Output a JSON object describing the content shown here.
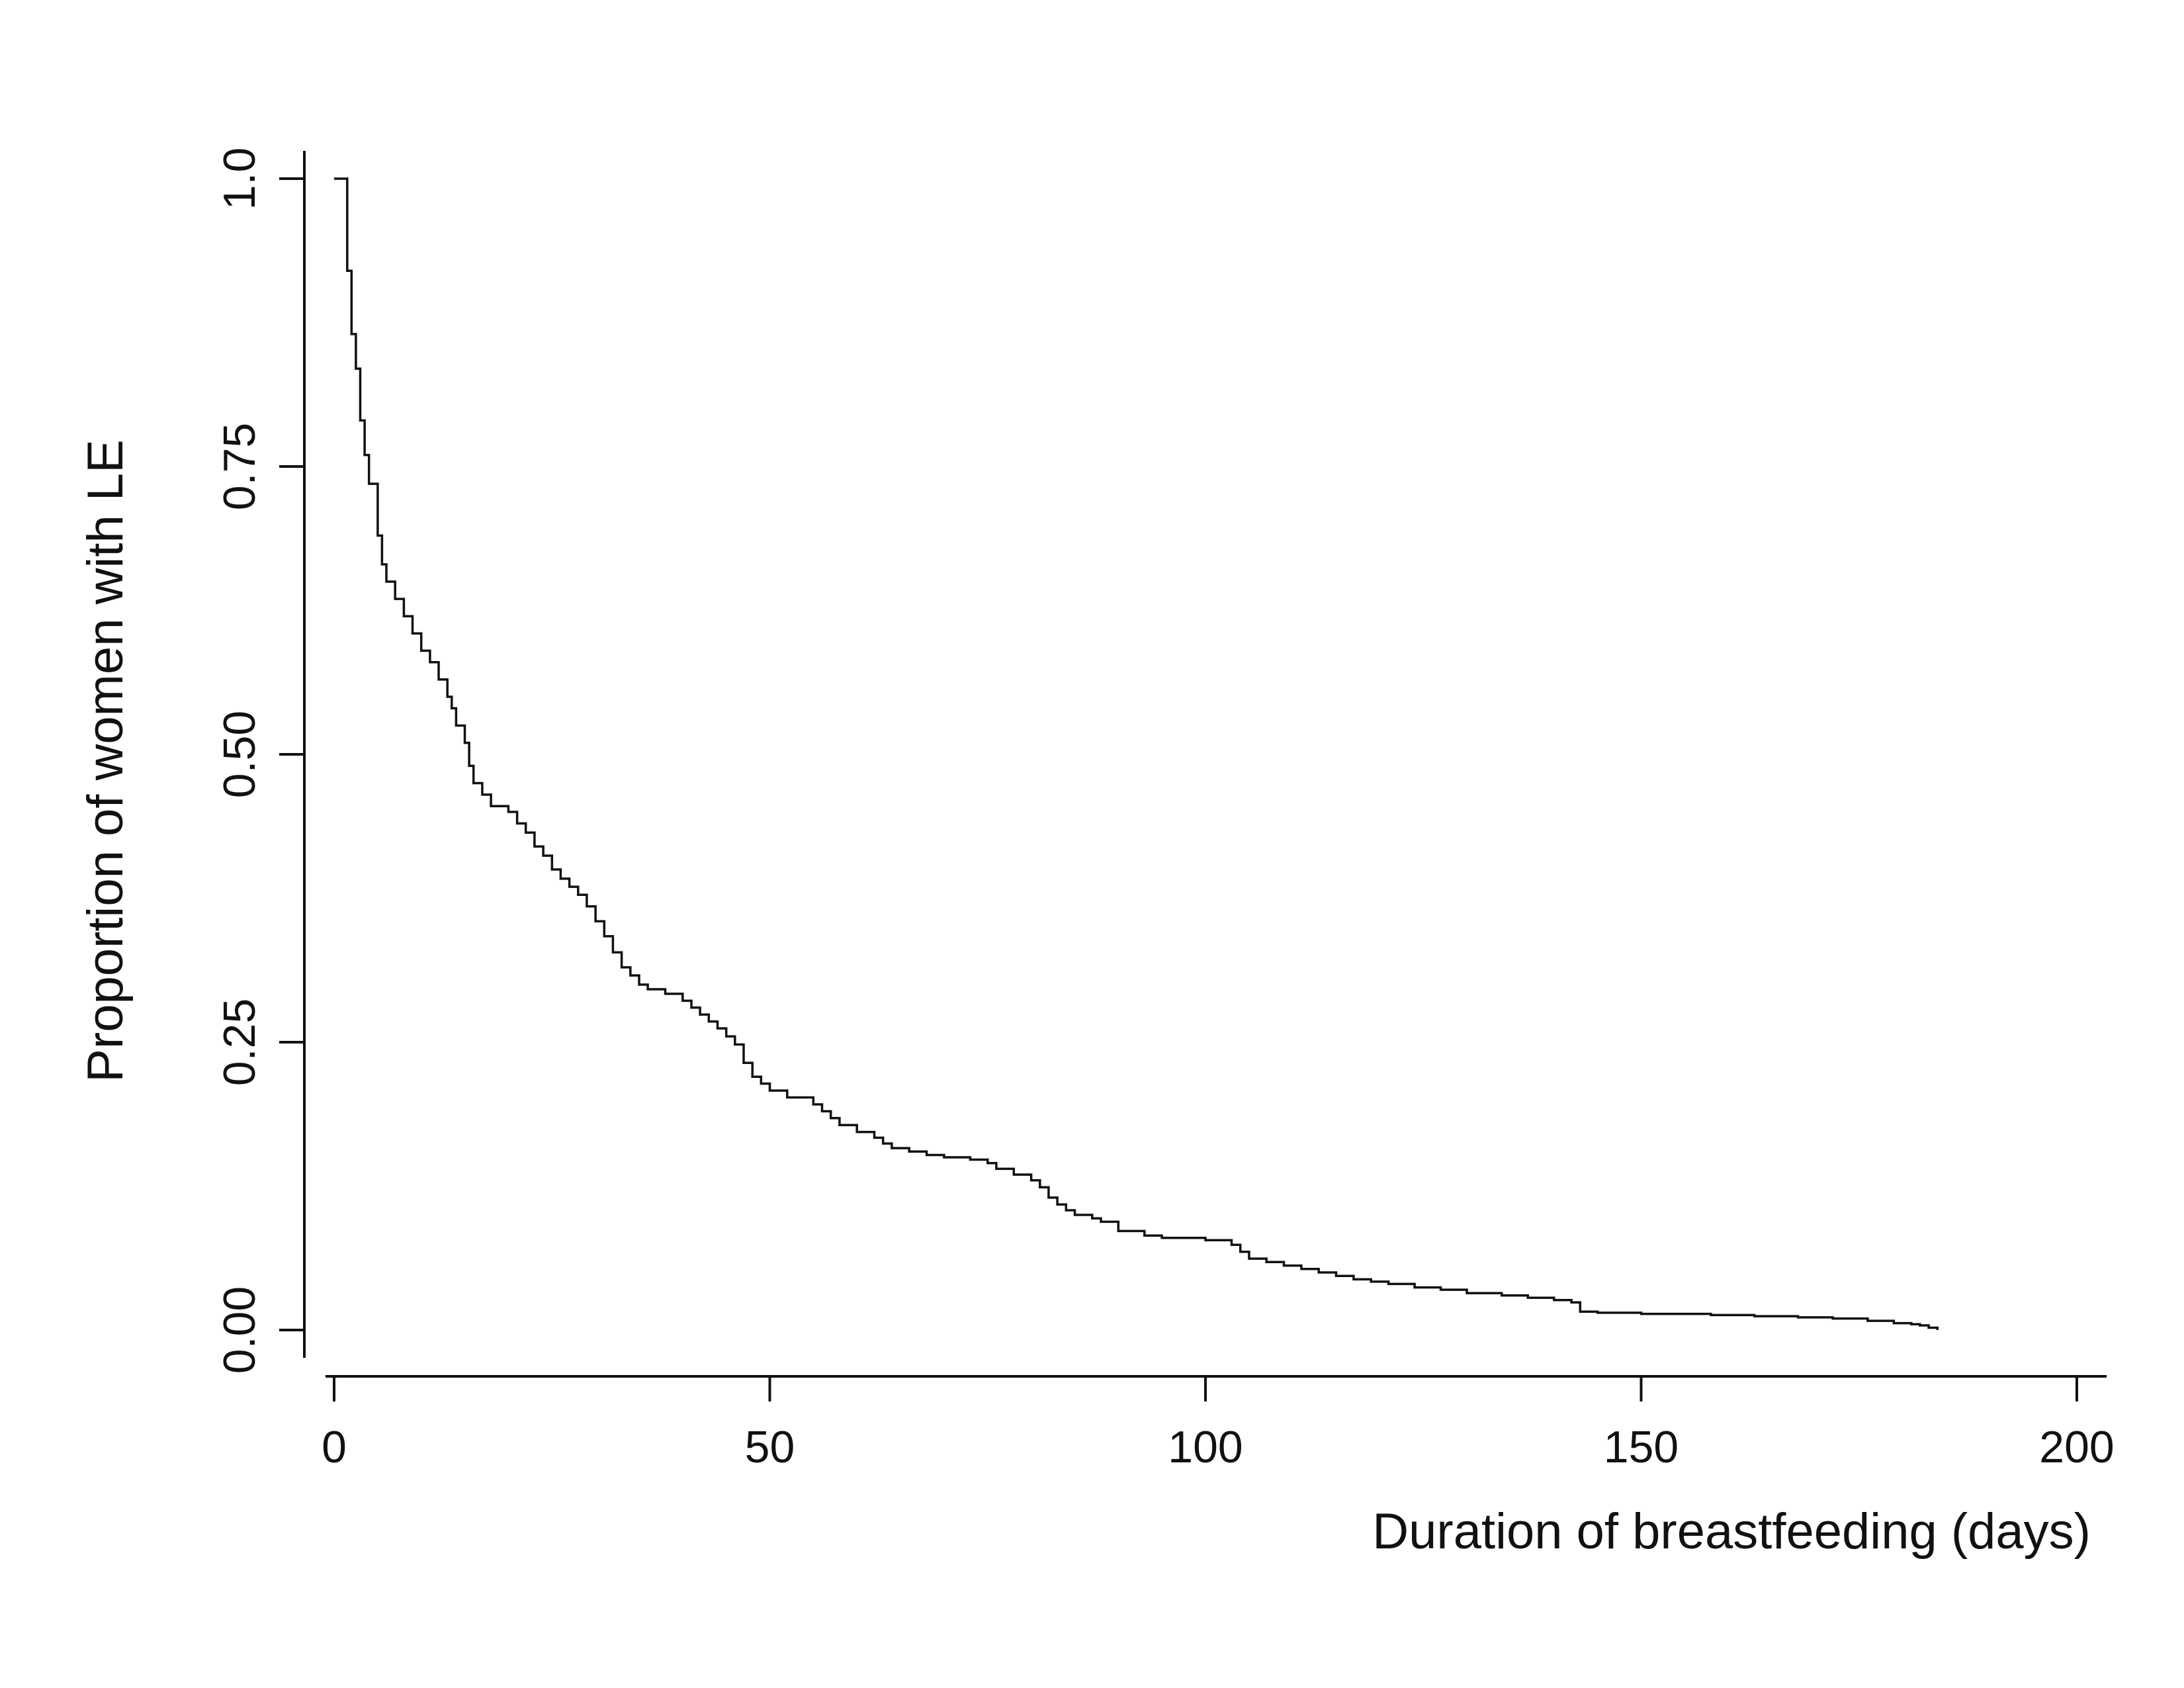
{
  "chart_data": {
    "type": "line",
    "subtype": "kaplan-meier-step-survival-curve",
    "title": "",
    "xlabel": "Duration of breastfeeding (days)",
    "ylabel": "Proportion of women with LE",
    "xlim": [
      0,
      200
    ],
    "ylim": [
      0,
      1
    ],
    "grid": "off",
    "legend": "none",
    "line_color": "#111111",
    "background": "#ffffff",
    "x_ticks": [
      {
        "value": 0,
        "label": "0"
      },
      {
        "value": 50,
        "label": "50"
      },
      {
        "value": 100,
        "label": "100"
      },
      {
        "value": 150,
        "label": "150"
      },
      {
        "value": 200,
        "label": "200"
      }
    ],
    "y_ticks": [
      {
        "value": 0,
        "label": "0.00"
      },
      {
        "value": 0.25,
        "label": "0.25"
      },
      {
        "value": 0.5,
        "label": "0.50"
      },
      {
        "value": 0.75,
        "label": "0.75"
      },
      {
        "value": 1,
        "label": "1.0"
      }
    ],
    "steps": [
      [
        0,
        1.0
      ],
      [
        1.5,
        0.92
      ],
      [
        2,
        0.865
      ],
      [
        2.5,
        0.835
      ],
      [
        3,
        0.79
      ],
      [
        3.5,
        0.76
      ],
      [
        4,
        0.735
      ],
      [
        5,
        0.69
      ],
      [
        5.5,
        0.665
      ],
      [
        6,
        0.65
      ],
      [
        7,
        0.635
      ],
      [
        8,
        0.62
      ],
      [
        9,
        0.605
      ],
      [
        10,
        0.59
      ],
      [
        11,
        0.58
      ],
      [
        12,
        0.565
      ],
      [
        13,
        0.55
      ],
      [
        13.5,
        0.54
      ],
      [
        14,
        0.525
      ],
      [
        15,
        0.51
      ],
      [
        15.5,
        0.49
      ],
      [
        16,
        0.475
      ],
      [
        17,
        0.465
      ],
      [
        18,
        0.455
      ],
      [
        20,
        0.45
      ],
      [
        21,
        0.44
      ],
      [
        22,
        0.432
      ],
      [
        23,
        0.42
      ],
      [
        24,
        0.412
      ],
      [
        25,
        0.4
      ],
      [
        26,
        0.392
      ],
      [
        27,
        0.385
      ],
      [
        28,
        0.378
      ],
      [
        29,
        0.368
      ],
      [
        30,
        0.355
      ],
      [
        31,
        0.342
      ],
      [
        32,
        0.328
      ],
      [
        33,
        0.315
      ],
      [
        34,
        0.308
      ],
      [
        35,
        0.3
      ],
      [
        36,
        0.296
      ],
      [
        38,
        0.292
      ],
      [
        40,
        0.286
      ],
      [
        41,
        0.28
      ],
      [
        42,
        0.274
      ],
      [
        43,
        0.268
      ],
      [
        44,
        0.262
      ],
      [
        45,
        0.255
      ],
      [
        46,
        0.248
      ],
      [
        47,
        0.232
      ],
      [
        48,
        0.22
      ],
      [
        49,
        0.214
      ],
      [
        50,
        0.208
      ],
      [
        52,
        0.202
      ],
      [
        55,
        0.196
      ],
      [
        56,
        0.19
      ],
      [
        57,
        0.184
      ],
      [
        58,
        0.178
      ],
      [
        60,
        0.172
      ],
      [
        62,
        0.167
      ],
      [
        63,
        0.162
      ],
      [
        64,
        0.158
      ],
      [
        66,
        0.155
      ],
      [
        68,
        0.152
      ],
      [
        70,
        0.15
      ],
      [
        73,
        0.148
      ],
      [
        75,
        0.145
      ],
      [
        76,
        0.14
      ],
      [
        78,
        0.135
      ],
      [
        80,
        0.13
      ],
      [
        81,
        0.124
      ],
      [
        82,
        0.115
      ],
      [
        83,
        0.109
      ],
      [
        84,
        0.104
      ],
      [
        85,
        0.1
      ],
      [
        87,
        0.097
      ],
      [
        88,
        0.094
      ],
      [
        90,
        0.086
      ],
      [
        93,
        0.082
      ],
      [
        95,
        0.08
      ],
      [
        100,
        0.078
      ],
      [
        103,
        0.074
      ],
      [
        104,
        0.068
      ],
      [
        105,
        0.062
      ],
      [
        107,
        0.059
      ],
      [
        109,
        0.056
      ],
      [
        111,
        0.053
      ],
      [
        113,
        0.05
      ],
      [
        115,
        0.047
      ],
      [
        117,
        0.044
      ],
      [
        119,
        0.042
      ],
      [
        121,
        0.04
      ],
      [
        124,
        0.037
      ],
      [
        127,
        0.035
      ],
      [
        130,
        0.032
      ],
      [
        134,
        0.03
      ],
      [
        137,
        0.028
      ],
      [
        140,
        0.026
      ],
      [
        142,
        0.024
      ],
      [
        143,
        0.016
      ],
      [
        145,
        0.015
      ],
      [
        150,
        0.014
      ],
      [
        158,
        0.013
      ],
      [
        163,
        0.012
      ],
      [
        168,
        0.011
      ],
      [
        172,
        0.01
      ],
      [
        176,
        0.008
      ],
      [
        179,
        0.006
      ],
      [
        181,
        0.005
      ],
      [
        182,
        0.004
      ],
      [
        183,
        0.002
      ],
      [
        184,
        0.0
      ]
    ]
  }
}
